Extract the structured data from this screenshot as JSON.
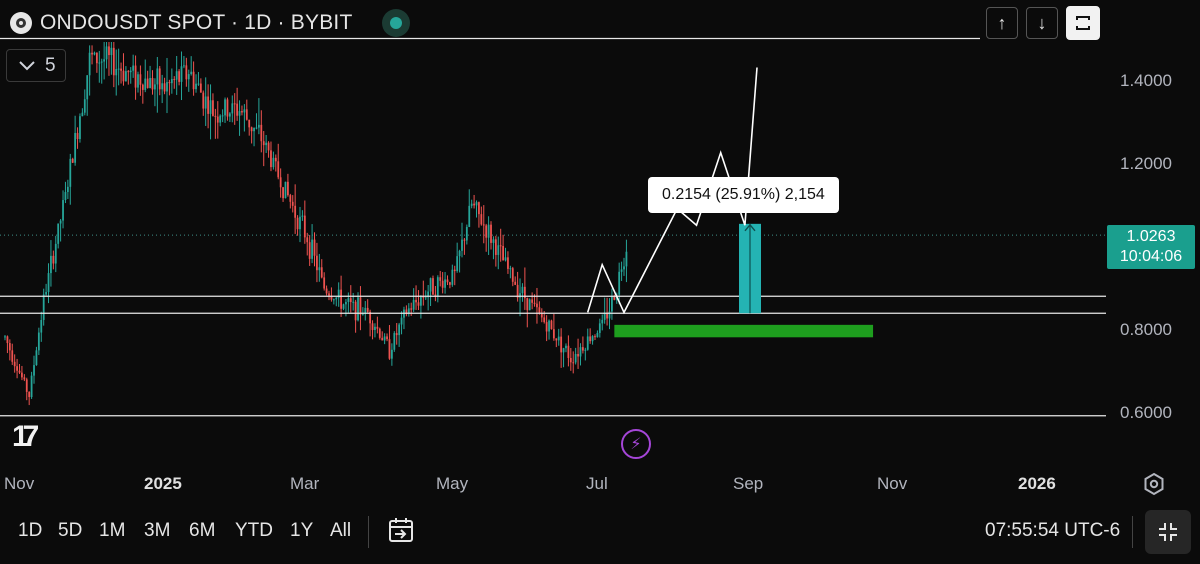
{
  "header": {
    "title": "ONDOUSDT SPOT · 1D · BYBIT",
    "logo_icon": "ondo-logo-icon",
    "status_color": "#26a69a"
  },
  "indicator_toggle": {
    "count": "5",
    "icon": "chevron-down-icon"
  },
  "top_controls": {
    "scroll_up": "↑",
    "scroll_down": "↓",
    "fullscreen_icon": "fullscreen-toggle-icon"
  },
  "price_axis": {
    "labels": [
      "1.4000",
      "1.2000",
      "0.8000",
      "0.6000"
    ],
    "last_price": "1.0263",
    "countdown": "10:04:06",
    "last_price_color": "#1a9f8e"
  },
  "measure_tool": {
    "label": "0.2154 (25.91%) 2,154"
  },
  "time_axis": {
    "labels": [
      {
        "text": "Nov",
        "bold": false
      },
      {
        "text": "2025",
        "bold": true
      },
      {
        "text": "Mar",
        "bold": false
      },
      {
        "text": "May",
        "bold": false
      },
      {
        "text": "Jul",
        "bold": false
      },
      {
        "text": "Sep",
        "bold": false
      },
      {
        "text": "Nov",
        "bold": false
      },
      {
        "text": "2026",
        "bold": true
      }
    ]
  },
  "ranges": [
    "1D",
    "5D",
    "1M",
    "3M",
    "6M",
    "YTD",
    "1Y",
    "All"
  ],
  "clock": "07:55:54 UTC-6",
  "colors": {
    "up": "#26a69a",
    "down": "#ef5350",
    "support_zone": "#1e9e1e",
    "measure_box": "#24b3b3",
    "alert_icon": "#a546d8"
  },
  "chart_data": {
    "type": "candlestick",
    "symbol": "ONDOUSDT",
    "timeframe": "1D",
    "exchange": "BYBIT",
    "ylim": [
      0.55,
      1.45
    ],
    "y_ticks": [
      0.6,
      0.8,
      1.2,
      1.4
    ],
    "last_price": 1.0263,
    "horizontal_levels": [
      1.5,
      0.879,
      0.838,
      0.591
    ],
    "support_zone": {
      "y_low": 0.78,
      "y_high": 0.81,
      "x_start": "2025-07-10",
      "x_end": "2025-10-25"
    },
    "measure": {
      "from": 0.838,
      "to": 1.0534,
      "change": 0.2154,
      "percent": 25.91,
      "ticks": 2154
    },
    "projection_path": [
      {
        "x": "2025-06-29",
        "y": 0.84
      },
      {
        "x": "2025-07-05",
        "y": 0.955
      },
      {
        "x": "2025-07-14",
        "y": 0.84
      },
      {
        "x": "2025-08-05",
        "y": 1.09
      },
      {
        "x": "2025-08-13",
        "y": 1.05
      },
      {
        "x": "2025-08-23",
        "y": 1.225
      },
      {
        "x": "2025-09-02",
        "y": 1.05
      },
      {
        "x": "2025-09-07",
        "y": 1.43
      }
    ],
    "price_path": [
      {
        "x": "2024-10-31",
        "y": 0.78
      },
      {
        "x": "2024-11-10",
        "y": 0.64
      },
      {
        "x": "2024-11-16",
        "y": 0.87
      },
      {
        "x": "2024-11-25",
        "y": 1.12
      },
      {
        "x": "2024-12-05",
        "y": 1.45
      },
      {
        "x": "2024-12-12",
        "y": 1.45
      },
      {
        "x": "2024-12-20",
        "y": 1.42
      },
      {
        "x": "2025-01-05",
        "y": 1.38
      },
      {
        "x": "2025-01-15",
        "y": 1.42
      },
      {
        "x": "2025-01-25",
        "y": 1.32
      },
      {
        "x": "2025-02-05",
        "y": 1.33
      },
      {
        "x": "2025-02-15",
        "y": 1.25
      },
      {
        "x": "2025-02-25",
        "y": 1.12
      },
      {
        "x": "2025-03-05",
        "y": 1.02
      },
      {
        "x": "2025-03-12",
        "y": 0.9
      },
      {
        "x": "2025-03-20",
        "y": 0.86
      },
      {
        "x": "2025-03-30",
        "y": 0.84
      },
      {
        "x": "2025-04-08",
        "y": 0.75
      },
      {
        "x": "2025-04-15",
        "y": 0.84
      },
      {
        "x": "2025-04-25",
        "y": 0.9
      },
      {
        "x": "2025-05-05",
        "y": 0.93
      },
      {
        "x": "2025-05-12",
        "y": 1.1
      },
      {
        "x": "2025-05-20",
        "y": 1.02
      },
      {
        "x": "2025-05-30",
        "y": 0.91
      },
      {
        "x": "2025-06-08",
        "y": 0.84
      },
      {
        "x": "2025-06-15",
        "y": 0.79
      },
      {
        "x": "2025-06-22",
        "y": 0.73
      },
      {
        "x": "2025-06-30",
        "y": 0.78
      },
      {
        "x": "2025-07-05",
        "y": 0.81
      },
      {
        "x": "2025-07-10",
        "y": 0.88
      },
      {
        "x": "2025-07-16",
        "y": 1.0263
      }
    ]
  }
}
